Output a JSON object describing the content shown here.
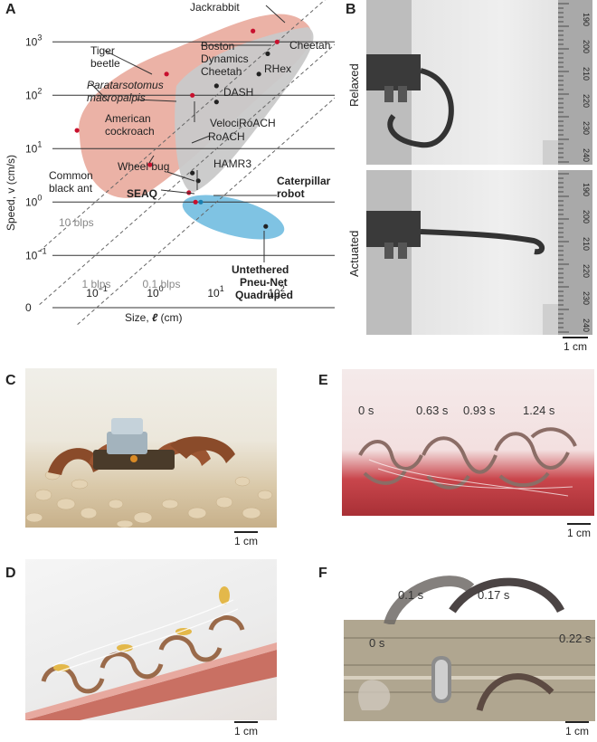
{
  "panels": {
    "A": "A",
    "B": "B",
    "C": "C",
    "D": "D",
    "E": "E",
    "F": "F"
  },
  "chart_data": {
    "type": "scatter",
    "xlabel_prefix": "Size, ",
    "xlabel_symbol": "ℓ",
    "xlabel_unit": " (cm)",
    "ylabel": "Speed, v (cm/s)",
    "xtick_bases": [
      "10",
      "10",
      "10",
      "10"
    ],
    "xtick_exps": [
      "−1",
      "0",
      "1",
      "2"
    ],
    "xtick_values": [
      0.1,
      1,
      10,
      100
    ],
    "ytick_labels": [
      {
        "base": "10",
        "exp": "3"
      },
      {
        "base": "10",
        "exp": "2"
      },
      {
        "base": "10",
        "exp": "1"
      },
      {
        "base": "10",
        "exp": "0"
      },
      {
        "base": "10",
        "exp": "−1"
      },
      {
        "base": "0",
        "exp": ""
      }
    ],
    "ytick_values": [
      1000,
      100,
      10,
      1,
      0.1,
      0
    ],
    "blps_lines": [
      "10 blps",
      "1 blps",
      "0.1 blps"
    ],
    "points": [
      {
        "label": "Jackrabbit",
        "x": 40,
        "y": 1600,
        "color": "#c8102e"
      },
      {
        "label": "Cheetah",
        "x": 100,
        "y": 1000,
        "color": "#c8102e"
      },
      {
        "label": "Boston Dynamics Cheetah",
        "x": 70,
        "y": 600,
        "color": "#222"
      },
      {
        "label": "RHex",
        "x": 50,
        "y": 250,
        "color": "#222"
      },
      {
        "label": "DASH",
        "x": 10,
        "y": 150,
        "color": "#222"
      },
      {
        "label": "VelociRoACH",
        "x": 10,
        "y": 75,
        "color": "#222"
      },
      {
        "label": "Tiger beetle",
        "x": 1.5,
        "y": 250,
        "color": "#c8102e"
      },
      {
        "label": "Paratarsotomus macropalpis",
        "x": 0.05,
        "y": 22,
        "color": "#c8102e"
      },
      {
        "label": "American cockroach",
        "x": 4,
        "y": 100,
        "color": "#c8102e"
      },
      {
        "label": "RoACH",
        "x": 4,
        "y": 3.5,
        "color": "#222"
      },
      {
        "label": "HAMR3",
        "x": 5,
        "y": 2.5,
        "color": "#222"
      },
      {
        "label": "Common black ant",
        "x": 0.8,
        "y": 5,
        "color": "#c8102e"
      },
      {
        "label": "Wheel bug",
        "x": 3.5,
        "y": 1.5,
        "color": "#c8102e"
      },
      {
        "label": "SEAQ",
        "x": 4.5,
        "y": 1.0,
        "color": "#c8102e"
      },
      {
        "label": "Caterpillar robot",
        "x": 5.5,
        "y": 1.0,
        "color": "#1b7fb0"
      },
      {
        "label": "Untethered Pneu-Net Quadruped",
        "x": 65,
        "y": 0.35,
        "color": "#222"
      }
    ],
    "labels": {
      "jackrabbit": "Jackrabbit",
      "tiger1": "Tiger",
      "tiger2": "beetle",
      "boston1": "Boston",
      "boston2": "Dynamics",
      "boston3": "Cheetah",
      "cheetah": "Cheetah",
      "rhex": "RHex",
      "dash": "DASH",
      "para1": "Paratarsotomus",
      "para2": "macropalpis",
      "amer1": "American",
      "amer2": "cockroach",
      "veloci": "VelociRoACH",
      "roach": "RoACH",
      "hamr": "HAMR3",
      "ant1": "Common",
      "ant2": "black ant",
      "wheel": "Wheel bug",
      "seaq": "SEAQ",
      "cat1": "Caterpillar",
      "cat2": "robot",
      "pneu1": "Untethered",
      "pneu2": "Pneu-Net",
      "pneu3": "Quadruped"
    }
  },
  "panel_b": {
    "relaxed": "Relaxed",
    "actuated": "Actuated",
    "ruler": [
      "190",
      "200",
      "210",
      "220",
      "230",
      "240"
    ]
  },
  "panel_e": {
    "times": [
      "0 s",
      "0.63 s",
      "0.93 s",
      "1.24 s"
    ]
  },
  "panel_f": {
    "t0": "0 s",
    "t1": "0.1 s",
    "t2": "0.17 s",
    "t3": "0.22 s"
  },
  "scale": "1 cm",
  "colors": {
    "animal_region": "#e8a596",
    "robot_region": "#c9c9c9",
    "blue_region": "#7fc3e3"
  }
}
